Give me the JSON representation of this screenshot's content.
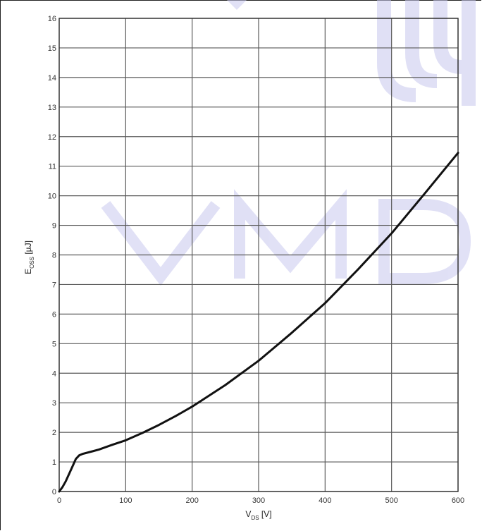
{
  "chart_data": {
    "type": "line",
    "title": "",
    "xlabel": {
      "main": "V",
      "sub": "DS",
      "unit": " [V]"
    },
    "ylabel": {
      "main": "E",
      "sub": "OSS",
      "unit": " [µJ]"
    },
    "xlim": [
      0,
      600
    ],
    "ylim": [
      0,
      16
    ],
    "xticks": [
      0,
      100,
      200,
      300,
      400,
      500,
      600
    ],
    "yticks": [
      0,
      1,
      2,
      3,
      4,
      5,
      6,
      7,
      8,
      9,
      10,
      11,
      12,
      13,
      14,
      15,
      16
    ],
    "grid": true,
    "series": [
      {
        "x": [
          0,
          5,
          10,
          15,
          20,
          25,
          30,
          35,
          40,
          50,
          60,
          80,
          100,
          125,
          150,
          175,
          200,
          250,
          300,
          350,
          400,
          450,
          500,
          550,
          600
        ],
        "y": [
          0,
          0.15,
          0.35,
          0.6,
          0.85,
          1.1,
          1.22,
          1.27,
          1.3,
          1.36,
          1.42,
          1.58,
          1.73,
          1.98,
          2.25,
          2.55,
          2.87,
          3.6,
          4.42,
          5.37,
          6.37,
          7.52,
          8.73,
          10.08,
          11.45
        ]
      }
    ]
  },
  "watermark": {
    "text": "VMD",
    "color": "#c8c8ee"
  }
}
